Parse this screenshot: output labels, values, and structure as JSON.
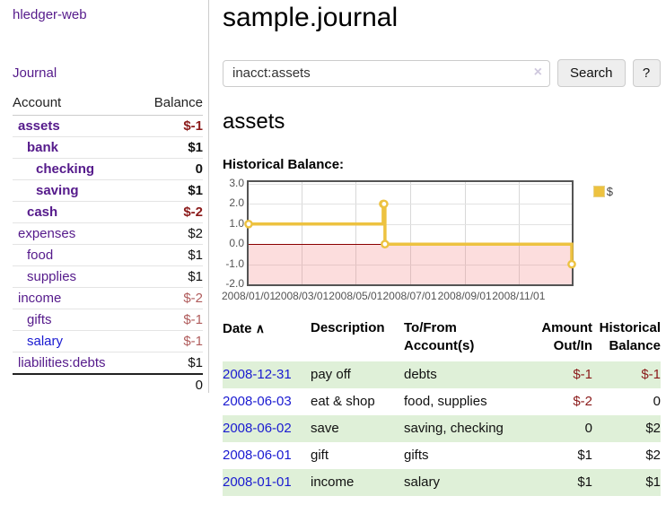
{
  "colors": {
    "link_purple": "#551a8b",
    "link_blue": "#1a1ad1",
    "neg_dark": "#8b1a1a",
    "neg_light": "#b05c5c",
    "row_green": "#dff0d8",
    "chart_line": "#edc240",
    "zero_line": "#8b0000",
    "plot_border": "#545454"
  },
  "sidebar": {
    "brand": "hledger-web",
    "nav_journal": "Journal",
    "table": {
      "col_account": "Account",
      "col_balance": "Balance",
      "rows": [
        {
          "name": "assets",
          "depth": 1,
          "bold": true,
          "balance": "$-1",
          "neg": "dark",
          "link": "purple"
        },
        {
          "name": "bank",
          "depth": 2,
          "bold": true,
          "balance": "$1",
          "neg": "none",
          "link": "purple"
        },
        {
          "name": "checking",
          "depth": 3,
          "bold": true,
          "balance": "0",
          "neg": "none",
          "link": "purple"
        },
        {
          "name": "saving",
          "depth": 3,
          "bold": true,
          "balance": "$1",
          "neg": "none",
          "link": "purple"
        },
        {
          "name": "cash",
          "depth": 2,
          "bold": true,
          "balance": "$-2",
          "neg": "dark",
          "link": "purple"
        },
        {
          "name": "expenses",
          "depth": 1,
          "bold": false,
          "balance": "$2",
          "neg": "none",
          "link": "purple"
        },
        {
          "name": "food",
          "depth": 2,
          "bold": false,
          "balance": "$1",
          "neg": "none",
          "link": "purple"
        },
        {
          "name": "supplies",
          "depth": 2,
          "bold": false,
          "balance": "$1",
          "neg": "none",
          "link": "purple"
        },
        {
          "name": "income",
          "depth": 1,
          "bold": false,
          "balance": "$-2",
          "neg": "light",
          "link": "purple"
        },
        {
          "name": "gifts",
          "depth": 2,
          "bold": false,
          "balance": "$-1",
          "neg": "light",
          "link": "purple"
        },
        {
          "name": "salary",
          "depth": 2,
          "bold": false,
          "balance": "$-1",
          "neg": "light",
          "link": "blue"
        },
        {
          "name": "liabilities:debts",
          "depth": 1,
          "bold": false,
          "balance": "$1",
          "neg": "none",
          "link": "purple"
        }
      ],
      "total": "0"
    }
  },
  "header": {
    "title": "sample.journal"
  },
  "search": {
    "value": "inacct:assets",
    "clear_icon": "×",
    "button": "Search",
    "help_button": "?"
  },
  "account_page": {
    "heading": "assets",
    "chart_label": "Historical Balance:"
  },
  "chart_data": {
    "type": "line",
    "title": "Historical Balance",
    "step": true,
    "legend": "$",
    "legend_position": "top-right",
    "series": [
      {
        "name": "$",
        "points": [
          [
            "2008-01-01",
            1
          ],
          [
            "2008-06-01",
            2
          ],
          [
            "2008-06-02",
            2
          ],
          [
            "2008-06-03",
            0
          ],
          [
            "2008-12-31",
            -1
          ]
        ]
      }
    ],
    "x_ticks": [
      {
        "label": "2008/01/01",
        "date": "2008-01-01"
      },
      {
        "label": "2008/03/01",
        "date": "2008-03-01"
      },
      {
        "label": "2008/05/01",
        "date": "2008-05-01"
      },
      {
        "label": "2008/07/01",
        "date": "2008-07-01"
      },
      {
        "label": "2008/09/01",
        "date": "2008-09-01"
      },
      {
        "label": "2008/11/01",
        "date": "2008-11-01"
      }
    ],
    "y_ticks": [
      {
        "label": "3.0",
        "value": 3
      },
      {
        "label": "2.0",
        "value": 2
      },
      {
        "label": "1.0",
        "value": 1
      },
      {
        "label": "0.0",
        "value": 0
      },
      {
        "label": "-1.0",
        "value": -1
      },
      {
        "label": "-2.0",
        "value": -2
      }
    ],
    "ylim": [
      -2,
      3
    ],
    "xrange": [
      "2008-01-01",
      "2008-12-31"
    ],
    "grid": true,
    "negative_region_shaded": true
  },
  "register": {
    "headers": {
      "date": "Date",
      "sort_icon": "∧",
      "description": "Description",
      "tofrom": [
        "To/From",
        "Account(s)"
      ],
      "amount": [
        "Amount",
        "Out/In"
      ],
      "balance": [
        "Historical",
        "Balance"
      ]
    },
    "rows": [
      {
        "date": "2008-12-31",
        "description": "pay off",
        "accounts": "debts",
        "amount": "$-1",
        "amount_neg": true,
        "balance": "$-1",
        "balance_neg": true,
        "stripe": true
      },
      {
        "date": "2008-06-03",
        "description": "eat & shop",
        "accounts": "food, supplies",
        "amount": "$-2",
        "amount_neg": true,
        "balance": "0",
        "balance_neg": false,
        "stripe": false
      },
      {
        "date": "2008-06-02",
        "description": "save",
        "accounts": "saving, checking",
        "amount": "0",
        "amount_neg": false,
        "balance": "$2",
        "balance_neg": false,
        "stripe": true
      },
      {
        "date": "2008-06-01",
        "description": "gift",
        "accounts": "gifts",
        "amount": "$1",
        "amount_neg": false,
        "balance": "$2",
        "balance_neg": false,
        "stripe": false
      },
      {
        "date": "2008-01-01",
        "description": "income",
        "accounts": "salary",
        "amount": "$1",
        "amount_neg": false,
        "balance": "$1",
        "balance_neg": false,
        "stripe": true
      }
    ]
  }
}
